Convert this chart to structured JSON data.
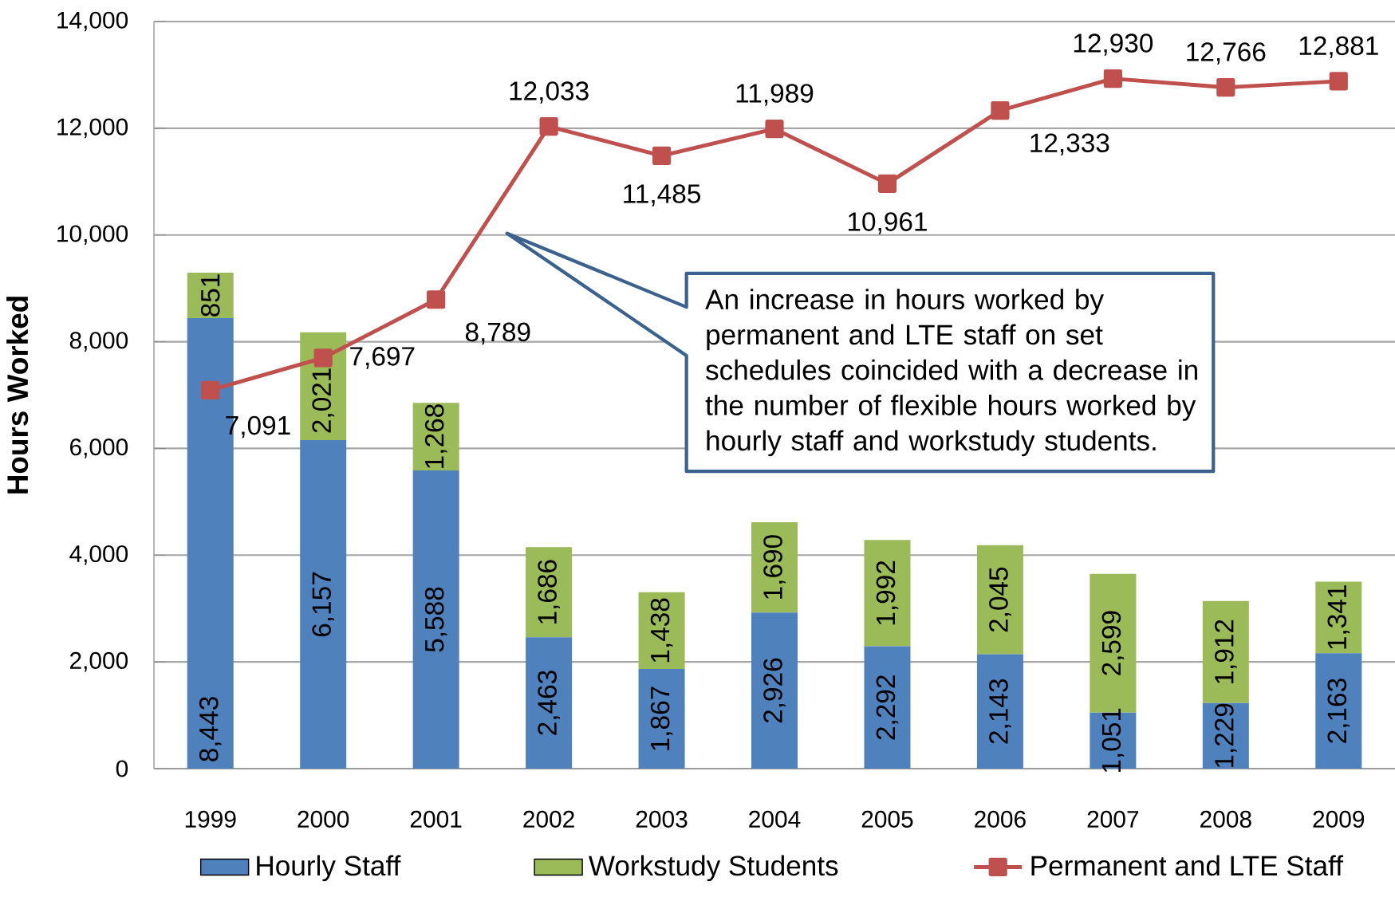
{
  "chart_data": {
    "type": "bar",
    "stacked": true,
    "ylabel": "Hours Worked",
    "categories": [
      "1999",
      "2000",
      "2001",
      "2002",
      "2003",
      "2004",
      "2005",
      "2006",
      "2007",
      "2008",
      "2009"
    ],
    "series": [
      {
        "name": "Hourly Staff",
        "color": "#4f81bd",
        "values": [
          8443,
          6157,
          5588,
          2463,
          1867,
          2926,
          2292,
          2143,
          1051,
          1229,
          2163
        ],
        "value_labels": [
          "8,443",
          "6,157",
          "5,588",
          "2,463",
          "1,867",
          "2,926",
          "2,292",
          "2,143",
          "1,051",
          "1,229",
          "2,163"
        ]
      },
      {
        "name": "Workstudy Students",
        "color": "#9bbb59",
        "values": [
          851,
          2021,
          1268,
          1686,
          1438,
          1690,
          1992,
          2045,
          2599,
          1912,
          1341
        ],
        "value_labels": [
          "851",
          "2,021",
          "1,268",
          "1,686",
          "1,438",
          "1,690",
          "1,992",
          "2,045",
          "2,599",
          "1,912",
          "1,341"
        ]
      },
      {
        "name": "Permanent and LTE Staff",
        "type": "line",
        "color": "#c0504d",
        "marker": "square",
        "values": [
          7091,
          7697,
          8789,
          12033,
          11485,
          11989,
          10961,
          12333,
          12930,
          12766,
          12881
        ],
        "value_labels": [
          "7,091",
          "7,697",
          "8,789",
          "12,033",
          "11,485",
          "11,989",
          "10,961",
          "12,333",
          "12,930",
          "12,766",
          "12,881"
        ]
      }
    ],
    "ylim": [
      0,
      14000
    ],
    "yticks": [
      0,
      {
        "value": 2000,
        "label": "2,000"
      },
      {
        "value": 4000,
        "label": "4,000"
      },
      {
        "value": 6000,
        "label": "6,000"
      },
      {
        "value": 8000,
        "label": "8,000"
      },
      {
        "value": 10000,
        "label": "10,000"
      },
      {
        "value": 12000,
        "label": "12,000"
      },
      {
        "value": 14000,
        "label": "14,000"
      }
    ],
    "grid": "y",
    "legend": "bottom",
    "annotations": [
      "An increase in hours worked by permanent and LTE staff on set schedules coincided with a decrease in the number of flexible hours worked by hourly staff and workstudy students."
    ]
  }
}
